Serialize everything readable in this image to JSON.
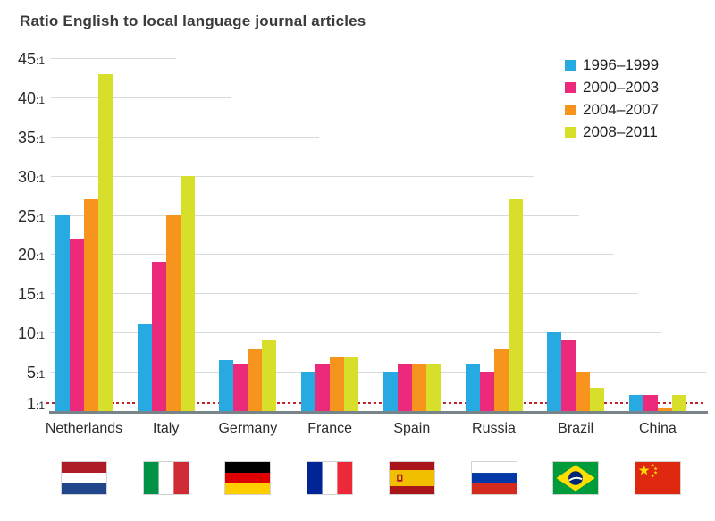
{
  "title": "Ratio English to local language journal articles",
  "colors": {
    "series": [
      "#27AAE1",
      "#EC2A7C",
      "#F7941E",
      "#D7DF2B"
    ],
    "gridline": "#D8D9DB",
    "axis_line": "#77858A",
    "baseline_red": "#C52026",
    "text": "#2B2B2B"
  },
  "legend": {
    "items": [
      {
        "label": "1996–1999",
        "color": "#27AAE1"
      },
      {
        "label": "2000–2003",
        "color": "#EC2A7C"
      },
      {
        "label": "2004–2007",
        "color": "#F7941E"
      },
      {
        "label": "2008–2011",
        "color": "#D7DF2B"
      }
    ]
  },
  "y_axis": {
    "tick_labels": [
      "45:1",
      "40:1",
      "35:1",
      "30:1",
      "25:1",
      "20:1",
      "15:1",
      "10:1",
      "5:1",
      "1:1"
    ],
    "tick_values": [
      45,
      40,
      35,
      30,
      25,
      20,
      15,
      10,
      5,
      1
    ]
  },
  "chart_data": {
    "type": "bar",
    "title": "Ratio English to local language journal articles",
    "categories": [
      "Netherlands",
      "Italy",
      "Germany",
      "France",
      "Spain",
      "Russia",
      "Brazil",
      "China"
    ],
    "series": [
      {
        "name": "1996–1999",
        "color": "#27AAE1",
        "values": [
          25,
          11,
          6.5,
          5,
          5,
          6,
          10,
          2
        ]
      },
      {
        "name": "2000–2003",
        "color": "#EC2A7C",
        "values": [
          22,
          19,
          6,
          6,
          6,
          5,
          9,
          2
        ]
      },
      {
        "name": "2004–2007",
        "color": "#F7941E",
        "values": [
          27,
          25,
          8,
          7,
          6,
          8,
          5,
          0.5
        ]
      },
      {
        "name": "2008–2011",
        "color": "#D7DF2B",
        "values": [
          43,
          30,
          9,
          7,
          6,
          27,
          3,
          2
        ]
      }
    ],
    "ylim": [
      0,
      45
    ],
    "baseline": {
      "value": 1,
      "label": "1:1",
      "style": "red-dotted"
    },
    "grid": "horizontal",
    "legend_position": "top-right"
  },
  "flags": [
    {
      "country": "Netherlands",
      "icon": "netherlands-flag"
    },
    {
      "country": "Italy",
      "icon": "italy-flag"
    },
    {
      "country": "Germany",
      "icon": "germany-flag"
    },
    {
      "country": "France",
      "icon": "france-flag"
    },
    {
      "country": "Spain",
      "icon": "spain-flag"
    },
    {
      "country": "Russia",
      "icon": "russia-flag"
    },
    {
      "country": "Brazil",
      "icon": "brazil-flag"
    },
    {
      "country": "China",
      "icon": "china-flag"
    }
  ]
}
